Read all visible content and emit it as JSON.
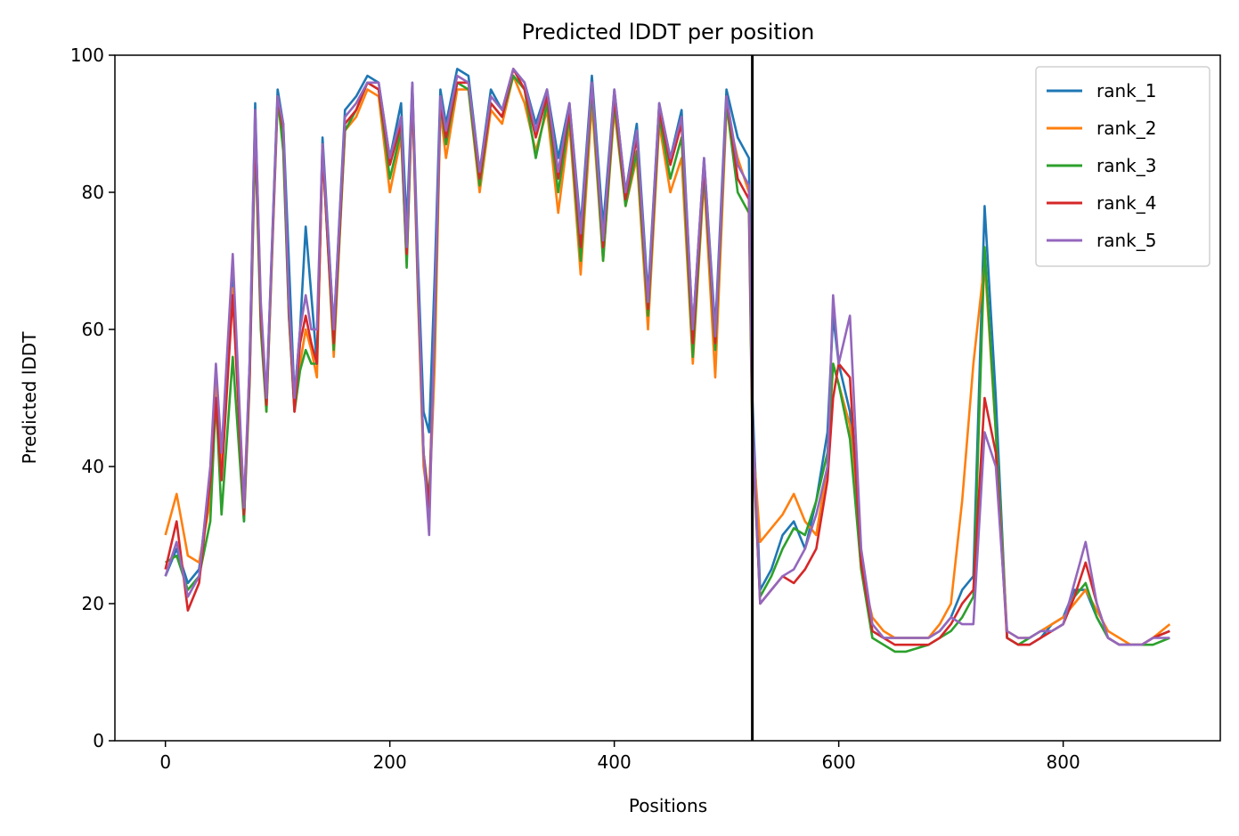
{
  "chart_data": {
    "type": "line",
    "title": "Predicted lDDT per position",
    "xlabel": "Positions",
    "ylabel": "Predicted lDDT",
    "xlim": [
      -45,
      940
    ],
    "ylim": [
      0,
      100
    ],
    "xticks": [
      0,
      200,
      400,
      600,
      800
    ],
    "yticks": [
      0,
      20,
      40,
      60,
      80,
      100
    ],
    "grid": false,
    "legend_position": "top-right",
    "vline_x": 523,
    "vline_color": "#000000",
    "x": [
      0,
      10,
      20,
      30,
      40,
      45,
      50,
      60,
      70,
      75,
      80,
      85,
      90,
      100,
      105,
      110,
      115,
      120,
      125,
      130,
      135,
      140,
      150,
      160,
      170,
      180,
      190,
      200,
      210,
      215,
      220,
      225,
      230,
      235,
      240,
      245,
      250,
      260,
      270,
      280,
      290,
      300,
      310,
      320,
      330,
      340,
      350,
      360,
      370,
      380,
      390,
      400,
      410,
      420,
      430,
      440,
      450,
      460,
      470,
      480,
      490,
      500,
      510,
      520,
      523,
      530,
      540,
      550,
      560,
      570,
      580,
      590,
      595,
      600,
      610,
      620,
      630,
      640,
      650,
      660,
      680,
      690,
      700,
      710,
      720,
      730,
      740,
      750,
      760,
      770,
      780,
      790,
      800,
      810,
      820,
      830,
      840,
      850,
      860,
      870,
      880,
      895
    ],
    "series": [
      {
        "name": "rank_1",
        "color": "#1f77b4",
        "values": [
          24,
          28,
          23,
          25,
          38,
          50,
          40,
          68,
          32,
          55,
          93,
          62,
          50,
          95,
          90,
          70,
          50,
          60,
          75,
          65,
          55,
          88,
          60,
          92,
          94,
          97,
          96,
          85,
          93,
          75,
          96,
          70,
          48,
          45,
          68,
          95,
          90,
          98,
          97,
          83,
          95,
          92,
          98,
          96,
          90,
          95,
          85,
          93,
          75,
          97,
          75,
          95,
          80,
          90,
          65,
          93,
          85,
          92,
          60,
          85,
          60,
          95,
          88,
          85,
          50,
          22,
          25,
          30,
          32,
          28,
          35,
          45,
          62,
          55,
          48,
          27,
          16,
          15,
          15,
          15,
          15,
          16,
          18,
          22,
          24,
          78,
          50,
          15,
          14,
          14,
          15,
          17,
          18,
          22,
          22,
          18,
          15,
          14,
          14,
          14,
          15,
          16
        ]
      },
      {
        "name": "rank_2",
        "color": "#ff7f0e",
        "values": [
          30,
          36,
          27,
          26,
          35,
          53,
          40,
          66,
          35,
          53,
          90,
          63,
          48,
          93,
          88,
          62,
          49,
          55,
          60,
          57,
          53,
          87,
          56,
          89,
          91,
          95,
          94,
          80,
          88,
          70,
          94,
          65,
          40,
          34,
          55,
          92,
          85,
          95,
          95,
          80,
          92,
          90,
          97,
          93,
          86,
          92,
          77,
          90,
          68,
          93,
          70,
          92,
          78,
          85,
          60,
          90,
          80,
          85,
          55,
          82,
          53,
          92,
          85,
          80,
          45,
          29,
          31,
          33,
          36,
          32,
          30,
          40,
          55,
          52,
          46,
          25,
          18,
          16,
          15,
          15,
          15,
          17,
          20,
          35,
          55,
          70,
          45,
          16,
          15,
          15,
          16,
          17,
          18,
          20,
          22,
          19,
          16,
          15,
          14,
          14,
          15,
          17
        ]
      },
      {
        "name": "rank_3",
        "color": "#2ca02c",
        "values": [
          26,
          27,
          22,
          24,
          32,
          50,
          33,
          56,
          32,
          52,
          88,
          60,
          48,
          94,
          86,
          62,
          48,
          54,
          57,
          55,
          55,
          86,
          57,
          89,
          92,
          96,
          95,
          82,
          89,
          69,
          95,
          66,
          42,
          35,
          60,
          93,
          87,
          96,
          95,
          81,
          93,
          91,
          97,
          95,
          85,
          93,
          80,
          91,
          70,
          95,
          70,
          93,
          78,
          86,
          62,
          91,
          82,
          88,
          56,
          83,
          57,
          93,
          80,
          77,
          44,
          21,
          24,
          28,
          31,
          30,
          35,
          42,
          55,
          52,
          44,
          25,
          15,
          14,
          13,
          13,
          14,
          15,
          16,
          18,
          21,
          72,
          45,
          15,
          14,
          15,
          16,
          16,
          17,
          21,
          23,
          18,
          15,
          14,
          14,
          14,
          14,
          15
        ]
      },
      {
        "name": "rank_4",
        "color": "#d62728",
        "values": [
          25,
          32,
          19,
          23,
          38,
          50,
          38,
          65,
          33,
          53,
          90,
          62,
          49,
          94,
          89,
          63,
          48,
          58,
          62,
          58,
          55,
          86,
          58,
          90,
          92,
          96,
          95,
          84,
          90,
          71,
          95,
          67,
          42,
          34,
          62,
          93,
          88,
          96,
          96,
          82,
          93,
          91,
          98,
          95,
          88,
          94,
          82,
          92,
          72,
          96,
          72,
          94,
          79,
          88,
          63,
          92,
          84,
          90,
          58,
          84,
          58,
          94,
          82,
          79,
          46,
          20,
          22,
          24,
          23,
          25,
          28,
          38,
          50,
          55,
          53,
          26,
          16,
          15,
          14,
          14,
          14,
          15,
          17,
          20,
          22,
          50,
          42,
          15,
          14,
          14,
          15,
          16,
          17,
          21,
          26,
          20,
          15,
          14,
          14,
          14,
          15,
          16
        ]
      },
      {
        "name": "rank_5",
        "color": "#9467bd",
        "values": [
          24,
          29,
          21,
          24,
          40,
          55,
          42,
          71,
          34,
          55,
          92,
          64,
          50,
          94,
          90,
          64,
          50,
          60,
          65,
          60,
          60,
          87,
          60,
          91,
          93,
          96,
          96,
          85,
          91,
          72,
          96,
          68,
          42,
          30,
          63,
          94,
          89,
          97,
          96,
          83,
          94,
          92,
          98,
          96,
          89,
          95,
          83,
          93,
          74,
          96,
          73,
          95,
          80,
          89,
          64,
          93,
          85,
          91,
          60,
          85,
          59,
          94,
          84,
          81,
          48,
          20,
          22,
          24,
          25,
          28,
          33,
          40,
          65,
          55,
          62,
          28,
          17,
          15,
          15,
          15,
          15,
          16,
          18,
          17,
          17,
          45,
          40,
          16,
          15,
          15,
          16,
          16,
          17,
          23,
          29,
          20,
          15,
          14,
          14,
          14,
          15,
          15
        ]
      }
    ]
  }
}
